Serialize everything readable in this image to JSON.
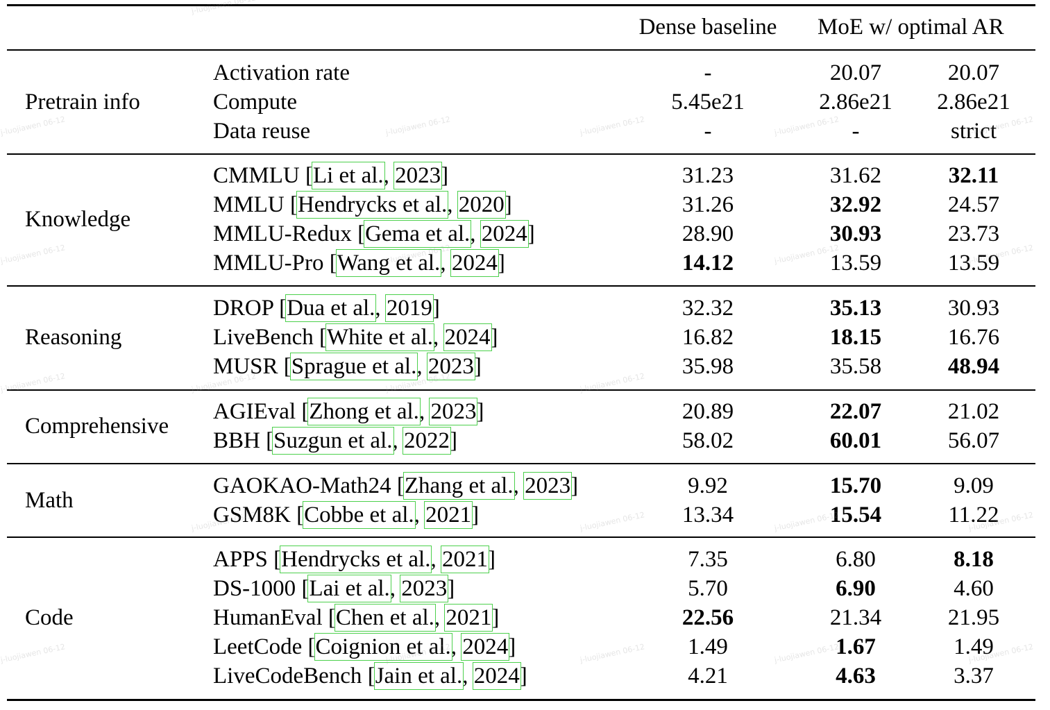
{
  "header": {
    "col1": "Dense baseline",
    "col23": "MoE w/ optimal AR"
  },
  "groups": [
    {
      "category": "Pretrain info",
      "rows": [
        {
          "label": "Activation rate",
          "cite_pre": "",
          "cite_author": "",
          "cite_year": "",
          "v1": "-",
          "v2": "20.07",
          "v3": "20.07",
          "bold": 0
        },
        {
          "label": "Compute",
          "cite_pre": "",
          "cite_author": "",
          "cite_year": "",
          "v1": "5.45e21",
          "v2": "2.86e21",
          "v3": "2.86e21",
          "bold": 0
        },
        {
          "label": "Data reuse",
          "cite_pre": "",
          "cite_author": "",
          "cite_year": "",
          "v1": "-",
          "v2": "-",
          "v3": "strict",
          "bold": 0
        }
      ]
    },
    {
      "category": "Knowledge",
      "rows": [
        {
          "label": "CMMLU",
          "cite_author": "Li et al.",
          "cite_year": "2023",
          "v1": "31.23",
          "v2": "31.62",
          "v3": "32.11",
          "bold": 3
        },
        {
          "label": "MMLU",
          "cite_author": "Hendrycks et al.",
          "cite_year": "2020",
          "v1": "31.26",
          "v2": "32.92",
          "v3": "24.57",
          "bold": 2
        },
        {
          "label": "MMLU-Redux",
          "cite_author": "Gema et al.",
          "cite_year": "2024",
          "v1": "28.90",
          "v2": "30.93",
          "v3": "23.73",
          "bold": 2
        },
        {
          "label": "MMLU-Pro",
          "cite_author": "Wang et al.",
          "cite_year": "2024",
          "v1": "14.12",
          "v2": "13.59",
          "v3": "13.59",
          "bold": 1
        }
      ]
    },
    {
      "category": "Reasoning",
      "rows": [
        {
          "label": "DROP",
          "cite_author": "Dua et al.",
          "cite_year": "2019",
          "v1": "32.32",
          "v2": "35.13",
          "v3": "30.93",
          "bold": 2
        },
        {
          "label": "LiveBench",
          "cite_author": "White et al.",
          "cite_year": "2024",
          "v1": "16.82",
          "v2": "18.15",
          "v3": "16.76",
          "bold": 2
        },
        {
          "label": "MUSR",
          "cite_author": "Sprague et al.",
          "cite_year": "2023",
          "v1": "35.98",
          "v2": "35.58",
          "v3": "48.94",
          "bold": 3
        }
      ]
    },
    {
      "category": "Comprehensive",
      "rows": [
        {
          "label": "AGIEval",
          "cite_author": "Zhong et al.",
          "cite_year": "2023",
          "v1": "20.89",
          "v2": "22.07",
          "v3": "21.02",
          "bold": 2
        },
        {
          "label": "BBH",
          "cite_author": "Suzgun et al.",
          "cite_year": "2022",
          "v1": "58.02",
          "v2": "60.01",
          "v3": "56.07",
          "bold": 2
        }
      ]
    },
    {
      "category": "Math",
      "rows": [
        {
          "label": "GAOKAO-Math24",
          "cite_author": "Zhang et al.",
          "cite_year": "2023",
          "v1": "9.92",
          "v2": "15.70",
          "v3": "9.09",
          "bold": 2
        },
        {
          "label": "GSM8K",
          "cite_author": "Cobbe et al.",
          "cite_year": "2021",
          "v1": "13.34",
          "v2": "15.54",
          "v3": "11.22",
          "bold": 2
        }
      ]
    },
    {
      "category": "Code",
      "rows": [
        {
          "label": "APPS",
          "cite_author": "Hendrycks et al.",
          "cite_year": "2021",
          "v1": "7.35",
          "v2": "6.80",
          "v3": "8.18",
          "bold": 3
        },
        {
          "label": "DS-1000",
          "cite_author": "Lai et al.",
          "cite_year": "2023",
          "v1": "5.70",
          "v2": "6.90",
          "v3": "4.60",
          "bold": 2
        },
        {
          "label": "HumanEval",
          "cite_author": "Chen et al.",
          "cite_year": "2021",
          "v1": "22.56",
          "v2": "21.34",
          "v3": "21.95",
          "bold": 1
        },
        {
          "label": "LeetCode",
          "cite_author": "Coignion et al.",
          "cite_year": "2024",
          "v1": "1.49",
          "v2": "1.67",
          "v3": "1.49",
          "bold": 2
        },
        {
          "label": "LiveCodeBench",
          "cite_author": "Jain et al.",
          "cite_year": "2024",
          "v1": "4.21",
          "v2": "4.63",
          "v3": "3.37",
          "bold": 2
        }
      ]
    }
  ],
  "watermark": "j-luojiawen 06-12"
}
